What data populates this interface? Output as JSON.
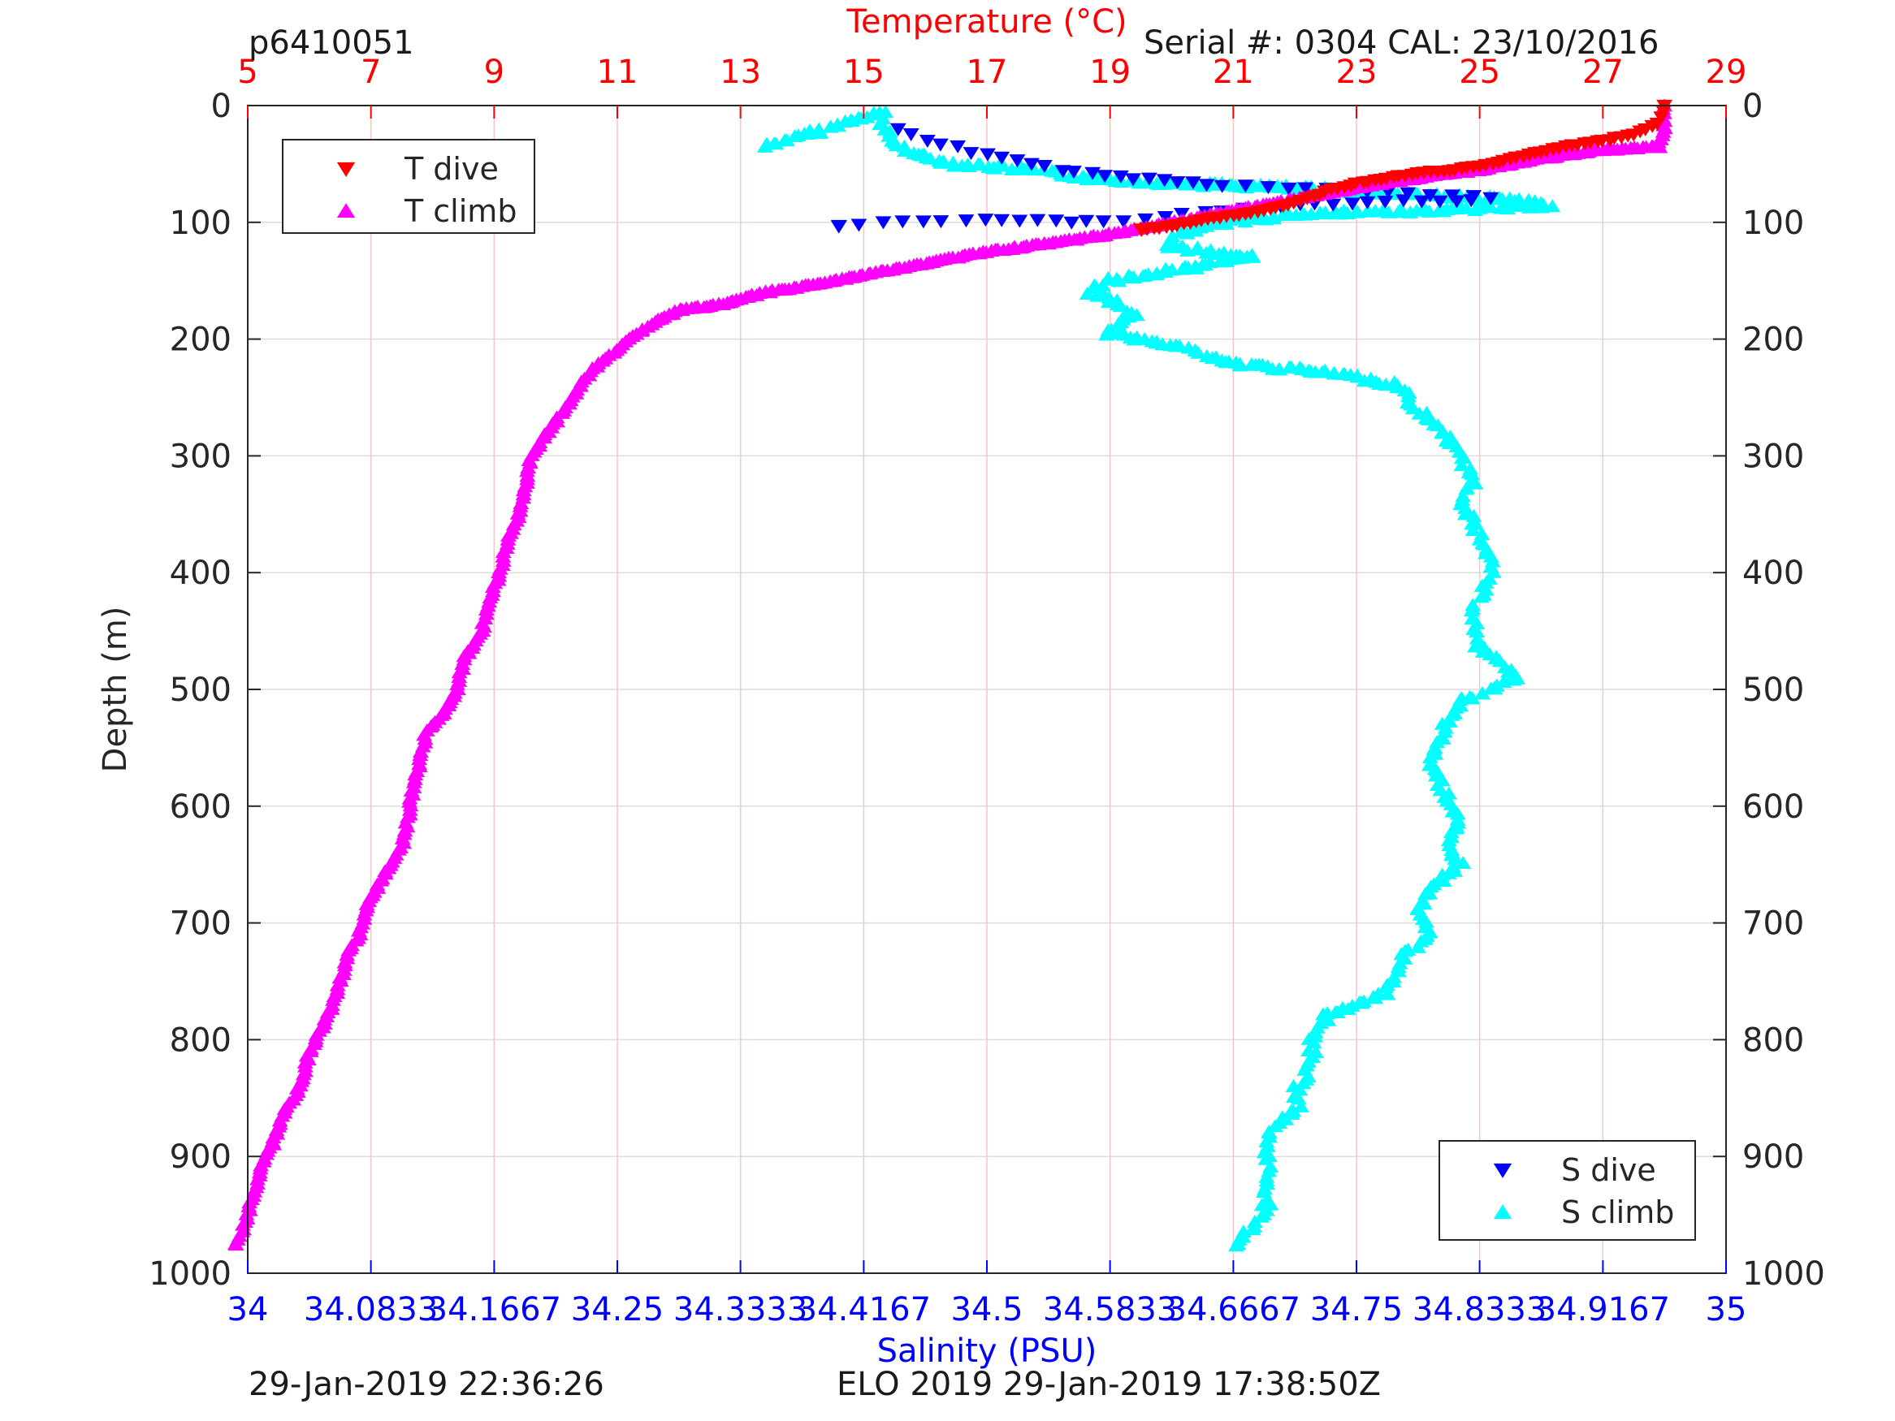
{
  "header": {
    "profile_id": "p6410051",
    "serial": "Serial #: 0304  CAL: 23/10/2016"
  },
  "footer": {
    "left": "29-Jan-2019 22:36:26",
    "center": "ELO 2019 29-Jan-2019 17:38:50Z"
  },
  "chart_data": {
    "type": "scatter",
    "y_axis": {
      "label": "Depth (m)",
      "range": [
        0,
        1000
      ],
      "reversed": true,
      "ticks": [
        "0",
        "100",
        "200",
        "300",
        "400",
        "500",
        "600",
        "700",
        "800",
        "900",
        "1000"
      ]
    },
    "top_axis": {
      "label": "Temperature (°C)",
      "range": [
        5,
        29
      ],
      "color": "#ff0000",
      "ticks": [
        "5",
        "7",
        "9",
        "11",
        "13",
        "15",
        "17",
        "19",
        "21",
        "23",
        "25",
        "27",
        "29"
      ]
    },
    "bottom_axis": {
      "label": "Salinity (PSU)",
      "range": [
        34,
        35
      ],
      "color": "#0000ff",
      "ticks": [
        "34",
        "34.0833",
        "34.1667",
        "34.25",
        "34.3333",
        "34.4167",
        "34.5",
        "34.5833",
        "34.6667",
        "34.75",
        "34.8333",
        "34.9167",
        "35"
      ]
    },
    "grid": true,
    "legends": [
      {
        "position": "top-left",
        "entries": [
          "T dive",
          "T climb"
        ]
      },
      {
        "position": "bottom-right",
        "entries": [
          "S dive",
          "S climb"
        ]
      }
    ],
    "series": [
      {
        "name": "T dive",
        "axis": "temperature",
        "marker": "triangle-down",
        "color": "#ff0000",
        "points": [
          [
            28.0,
            0
          ],
          [
            28.0,
            5
          ],
          [
            27.9,
            15
          ],
          [
            27.5,
            25
          ],
          [
            27.0,
            30
          ],
          [
            26.4,
            35
          ],
          [
            25.8,
            42
          ],
          [
            25.2,
            50
          ],
          [
            24.6,
            55
          ],
          [
            24.0,
            58
          ],
          [
            23.5,
            62
          ],
          [
            23.0,
            67
          ],
          [
            22.6,
            72
          ],
          [
            22.3,
            78
          ],
          [
            21.9,
            85
          ],
          [
            21.5,
            90
          ],
          [
            21.0,
            94
          ],
          [
            20.5,
            98
          ],
          [
            20.0,
            103
          ],
          [
            19.5,
            106
          ]
        ]
      },
      {
        "name": "T climb",
        "axis": "temperature",
        "marker": "triangle-up",
        "color": "#ff00ff",
        "points": [
          [
            28.0,
            0
          ],
          [
            28.0,
            20
          ],
          [
            27.9,
            35
          ],
          [
            27.0,
            38
          ],
          [
            26.0,
            45
          ],
          [
            25.0,
            55
          ],
          [
            24.0,
            62
          ],
          [
            23.0,
            70
          ],
          [
            22.0,
            80
          ],
          [
            21.0,
            90
          ],
          [
            20.0,
            100
          ],
          [
            19.0,
            110
          ],
          [
            18.0,
            118
          ],
          [
            17.0,
            125
          ],
          [
            16.0,
            135
          ],
          [
            15.0,
            145
          ],
          [
            14.5,
            150
          ],
          [
            14.0,
            155
          ],
          [
            13.4,
            160
          ],
          [
            12.7,
            170
          ],
          [
            12.0,
            175
          ],
          [
            11.6,
            185
          ],
          [
            11.2,
            200
          ],
          [
            11.0,
            210
          ],
          [
            10.6,
            225
          ],
          [
            10.4,
            240
          ],
          [
            10.2,
            255
          ],
          [
            10.0,
            270
          ],
          [
            9.8,
            285
          ],
          [
            9.6,
            300
          ],
          [
            9.5,
            330
          ],
          [
            9.4,
            350
          ],
          [
            9.2,
            375
          ],
          [
            9.1,
            400
          ],
          [
            8.9,
            425
          ],
          [
            8.8,
            450
          ],
          [
            8.5,
            475
          ],
          [
            8.4,
            500
          ],
          [
            8.2,
            520
          ],
          [
            7.9,
            535
          ],
          [
            7.8,
            560
          ],
          [
            7.7,
            580
          ],
          [
            7.6,
            610
          ],
          [
            7.5,
            635
          ],
          [
            7.3,
            650
          ],
          [
            7.1,
            670
          ],
          [
            6.9,
            690
          ],
          [
            6.8,
            710
          ],
          [
            6.6,
            730
          ],
          [
            6.5,
            750
          ],
          [
            6.3,
            780
          ],
          [
            6.2,
            790
          ],
          [
            6.0,
            810
          ],
          [
            5.9,
            830
          ],
          [
            5.8,
            845
          ],
          [
            5.6,
            860
          ],
          [
            5.5,
            875
          ],
          [
            5.4,
            890
          ],
          [
            5.2,
            910
          ],
          [
            5.1,
            930
          ],
          [
            5.0,
            950
          ],
          [
            4.9,
            965
          ],
          [
            4.8,
            975
          ]
        ]
      },
      {
        "name": "S dive",
        "axis": "salinity",
        "marker": "triangle-down",
        "color": "#0000ff",
        "points": [
          [
            34.44,
            20
          ],
          [
            34.45,
            25
          ],
          [
            34.46,
            30
          ],
          [
            34.48,
            35
          ],
          [
            34.49,
            40
          ],
          [
            34.51,
            45
          ],
          [
            34.53,
            50
          ],
          [
            34.55,
            55
          ],
          [
            34.58,
            60
          ],
          [
            34.6,
            62
          ],
          [
            34.62,
            64
          ],
          [
            34.64,
            66
          ],
          [
            34.66,
            68
          ],
          [
            34.69,
            70
          ],
          [
            34.73,
            72
          ],
          [
            34.77,
            74
          ],
          [
            34.8,
            76
          ],
          [
            34.83,
            78
          ],
          [
            34.84,
            80
          ],
          [
            34.7,
            85
          ],
          [
            34.66,
            90
          ],
          [
            34.62,
            95
          ],
          [
            34.58,
            100
          ],
          [
            34.5,
            98
          ],
          [
            34.47,
            100
          ],
          [
            34.43,
            100
          ],
          [
            34.4,
            103
          ]
        ]
      },
      {
        "name": "S climb",
        "axis": "salinity",
        "marker": "triangle-up",
        "color": "#00ffff",
        "points": [
          [
            34.35,
            35
          ],
          [
            34.43,
            5
          ],
          [
            34.43,
            20
          ],
          [
            34.44,
            35
          ],
          [
            34.46,
            45
          ],
          [
            34.48,
            50
          ],
          [
            34.53,
            55
          ],
          [
            34.57,
            62
          ],
          [
            34.62,
            66
          ],
          [
            34.7,
            70
          ],
          [
            34.78,
            75
          ],
          [
            34.85,
            80
          ],
          [
            34.88,
            85
          ],
          [
            34.8,
            90
          ],
          [
            34.72,
            92
          ],
          [
            34.66,
            100
          ],
          [
            34.63,
            110
          ],
          [
            34.62,
            120
          ],
          [
            34.68,
            130
          ],
          [
            34.63,
            140
          ],
          [
            34.58,
            150
          ],
          [
            34.57,
            160
          ],
          [
            34.59,
            170
          ],
          [
            34.6,
            180
          ],
          [
            34.58,
            195
          ],
          [
            34.63,
            205
          ],
          [
            34.66,
            220
          ],
          [
            34.74,
            230
          ],
          [
            34.78,
            240
          ],
          [
            34.79,
            260
          ],
          [
            34.81,
            280
          ],
          [
            34.82,
            300
          ],
          [
            34.83,
            320
          ],
          [
            34.82,
            340
          ],
          [
            34.83,
            360
          ],
          [
            34.84,
            380
          ],
          [
            34.84,
            400
          ],
          [
            34.83,
            430
          ],
          [
            34.83,
            460
          ],
          [
            34.84,
            470
          ],
          [
            34.86,
            490
          ],
          [
            34.82,
            510
          ],
          [
            34.81,
            530
          ],
          [
            34.8,
            560
          ],
          [
            34.81,
            590
          ],
          [
            34.82,
            610
          ],
          [
            34.81,
            630
          ],
          [
            34.82,
            650
          ],
          [
            34.8,
            670
          ],
          [
            34.79,
            690
          ],
          [
            34.8,
            710
          ],
          [
            34.78,
            730
          ],
          [
            34.77,
            760
          ],
          [
            34.73,
            780
          ],
          [
            34.72,
            800
          ],
          [
            34.72,
            820
          ],
          [
            34.71,
            840
          ],
          [
            34.71,
            860
          ],
          [
            34.69,
            880
          ],
          [
            34.69,
            900
          ],
          [
            34.69,
            920
          ],
          [
            34.69,
            940
          ],
          [
            34.68,
            960
          ],
          [
            34.67,
            975
          ]
        ]
      }
    ]
  }
}
